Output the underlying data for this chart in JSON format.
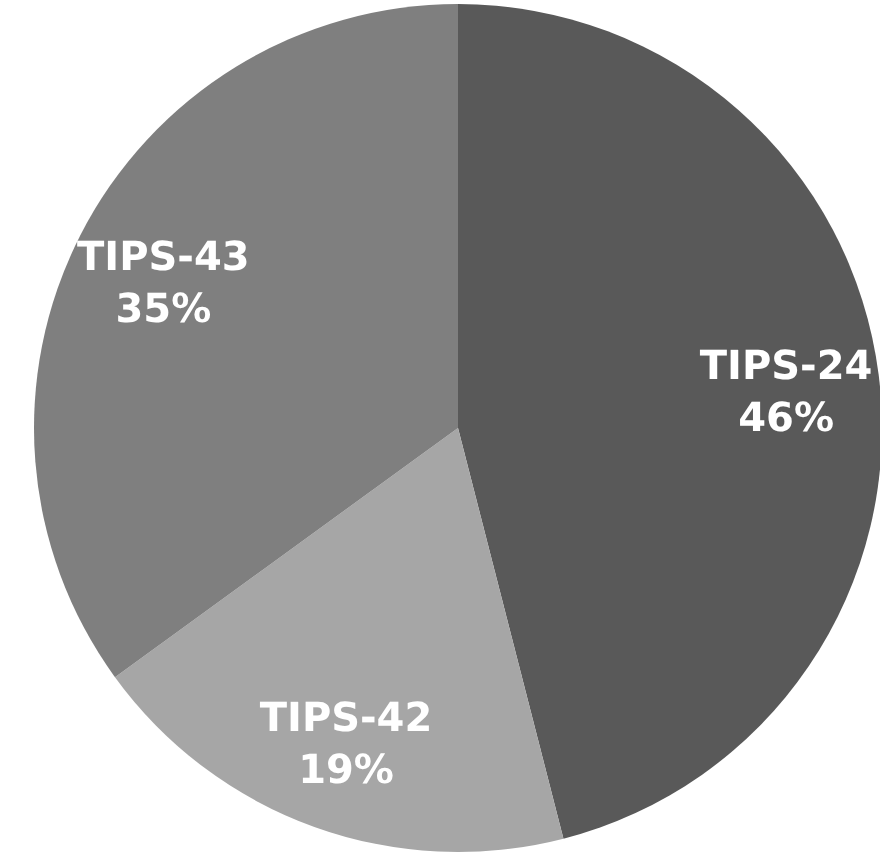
{
  "chart_data": {
    "type": "pie",
    "categories": [
      "TIPS-24",
      "TIPS-42",
      "TIPS-43"
    ],
    "values": [
      46,
      19,
      35
    ],
    "colors": [
      "#595959",
      "#a6a6a6",
      "#7f7f7f"
    ],
    "value_labels": [
      "46%",
      "19%",
      "35%"
    ]
  }
}
